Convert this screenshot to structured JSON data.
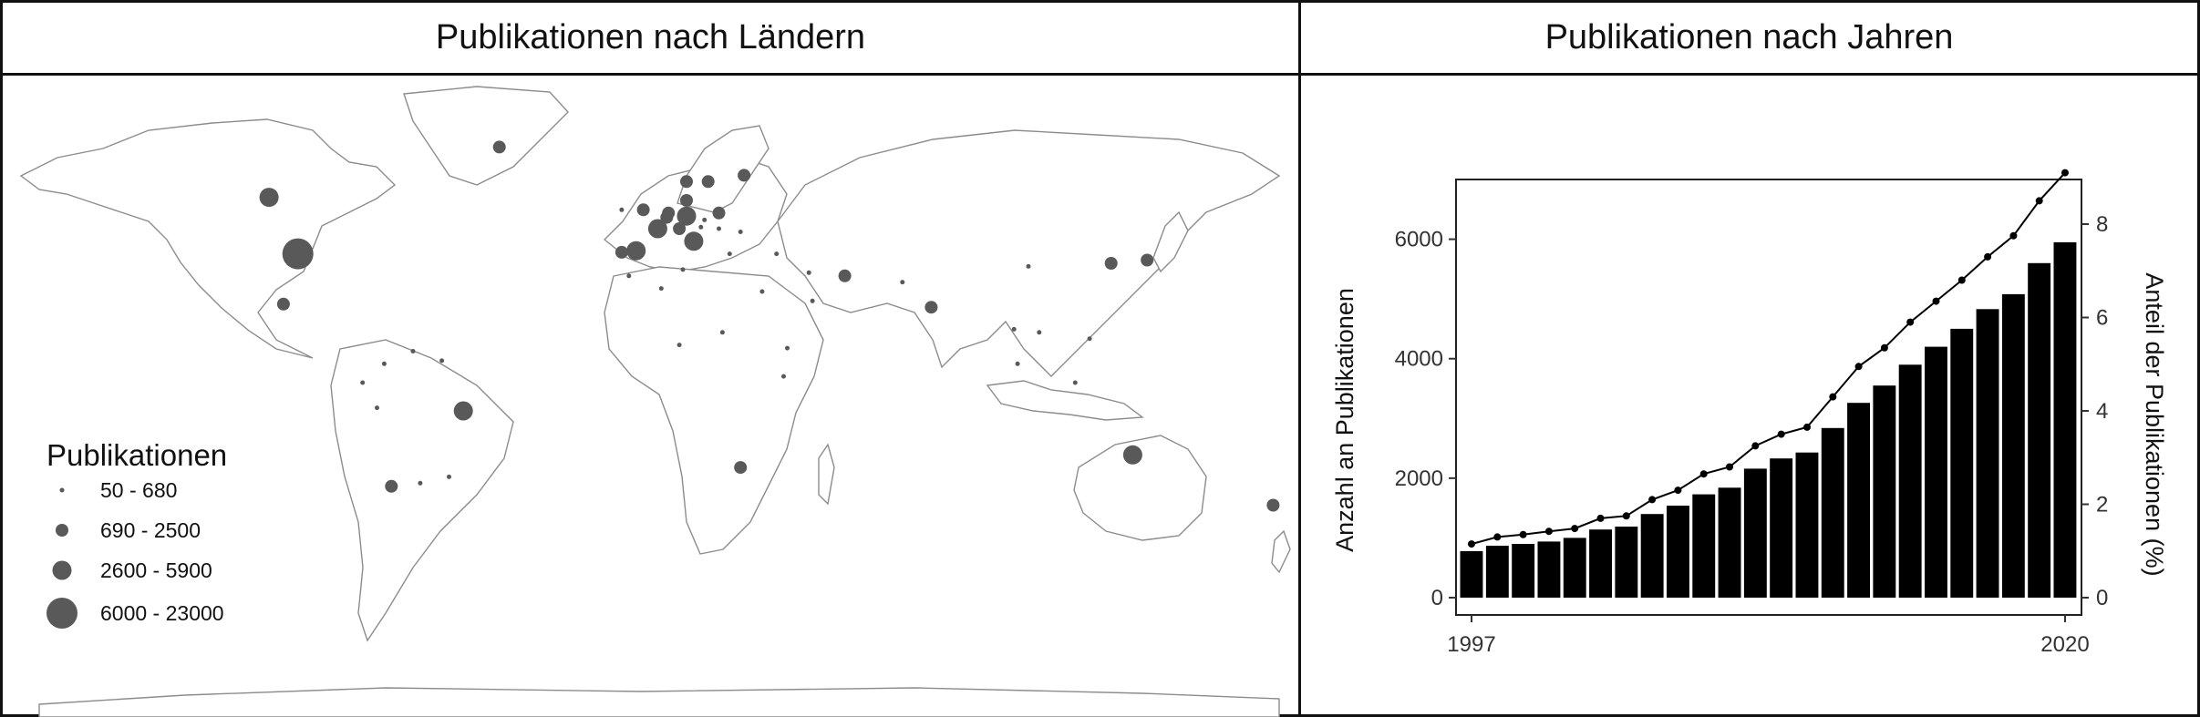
{
  "left_panel": {
    "title": "Publikationen nach Ländern",
    "legend": {
      "title": "Publikationen",
      "items": [
        {
          "label": "50 - 680",
          "size": 1
        },
        {
          "label": "690 - 2500",
          "size": 2
        },
        {
          "label": "2600 - 5900",
          "size": 3
        },
        {
          "label": "6000 - 23000",
          "size": 4
        }
      ]
    }
  },
  "right_panel": {
    "title": "Publikationen nach Jahren"
  },
  "chart_data": [
    {
      "type": "bubble-map",
      "title": "Publikationen nach Ländern",
      "size_legend_title": "Publikationen",
      "size_classes": [
        "50 - 680",
        "690 - 2500",
        "2600 - 5900",
        "6000 - 23000"
      ],
      "points": [
        {
          "lon": -98,
          "lat": 39,
          "class": 4
        },
        {
          "lon": -106,
          "lat": 57,
          "class": 3
        },
        {
          "lon": -42,
          "lat": 73,
          "class": 2
        },
        {
          "lon": -102,
          "lat": 23,
          "class": 2
        },
        {
          "lon": -52,
          "lat": -11,
          "class": 3
        },
        {
          "lon": -72,
          "lat": -35,
          "class": 2
        },
        {
          "lon": -64,
          "lat": -34,
          "class": 1
        },
        {
          "lon": -56,
          "lat": -32,
          "class": 1
        },
        {
          "lon": -74,
          "lat": 4,
          "class": 1
        },
        {
          "lon": -66,
          "lat": 8,
          "class": 1
        },
        {
          "lon": -76,
          "lat": -10,
          "class": 1
        },
        {
          "lon": -80,
          "lat": -2,
          "class": 1
        },
        {
          "lon": -58,
          "lat": 5,
          "class": 1
        },
        {
          "lon": -4,
          "lat": 40,
          "class": 3
        },
        {
          "lon": -8,
          "lat": 39.5,
          "class": 2
        },
        {
          "lon": 2,
          "lat": 47,
          "class": 3
        },
        {
          "lon": -2,
          "lat": 53,
          "class": 2
        },
        {
          "lon": -8,
          "lat": 53,
          "class": 1
        },
        {
          "lon": 10,
          "lat": 51,
          "class": 3
        },
        {
          "lon": 12,
          "lat": 43,
          "class": 3
        },
        {
          "lon": 5,
          "lat": 52,
          "class": 2
        },
        {
          "lon": 4.5,
          "lat": 50.6,
          "class": 2
        },
        {
          "lon": 8,
          "lat": 47,
          "class": 2
        },
        {
          "lon": 14,
          "lat": 47.5,
          "class": 1
        },
        {
          "lon": 10,
          "lat": 56,
          "class": 2
        },
        {
          "lon": 10,
          "lat": 62,
          "class": 2
        },
        {
          "lon": 16,
          "lat": 62,
          "class": 2
        },
        {
          "lon": 26,
          "lat": 64,
          "class": 2
        },
        {
          "lon": 19,
          "lat": 52,
          "class": 2
        },
        {
          "lon": 15,
          "lat": 49.8,
          "class": 1
        },
        {
          "lon": 22,
          "lat": 39,
          "class": 1
        },
        {
          "lon": 25,
          "lat": 46,
          "class": 1
        },
        {
          "lon": 19,
          "lat": 47,
          "class": 1
        },
        {
          "lon": 35,
          "lat": 39,
          "class": 1
        },
        {
          "lon": 31,
          "lat": 27,
          "class": 1
        },
        {
          "lon": 54,
          "lat": 32,
          "class": 2
        },
        {
          "lon": 45,
          "lat": 24,
          "class": 1
        },
        {
          "lon": 3,
          "lat": 28,
          "class": 1
        },
        {
          "lon": 9,
          "lat": 34,
          "class": 1
        },
        {
          "lon": -6,
          "lat": 32,
          "class": 1
        },
        {
          "lon": 8,
          "lat": 10,
          "class": 1
        },
        {
          "lon": 38,
          "lat": 9,
          "class": 1
        },
        {
          "lon": 37,
          "lat": 0,
          "class": 1
        },
        {
          "lon": 25,
          "lat": -29,
          "class": 2
        },
        {
          "lon": 20,
          "lat": 14,
          "class": 1
        },
        {
          "lon": 78,
          "lat": 22,
          "class": 2
        },
        {
          "lon": 70,
          "lat": 30,
          "class": 1
        },
        {
          "lon": 134,
          "lat": -25,
          "class": 3
        },
        {
          "lon": 173,
          "lat": -41,
          "class": 2
        },
        {
          "lon": 128,
          "lat": 36,
          "class": 2
        },
        {
          "lon": 138,
          "lat": 37,
          "class": 2
        },
        {
          "lon": 105,
          "lat": 35,
          "class": 1
        },
        {
          "lon": 101,
          "lat": 15,
          "class": 1
        },
        {
          "lon": 108,
          "lat": 14,
          "class": 1
        },
        {
          "lon": 102,
          "lat": 4,
          "class": 1
        },
        {
          "lon": 118,
          "lat": -2,
          "class": 1
        },
        {
          "lon": 122,
          "lat": 12,
          "class": 1
        },
        {
          "lon": 44,
          "lat": 33,
          "class": 1
        }
      ]
    },
    {
      "type": "bar+line",
      "title": "Publikationen nach Jahren",
      "x": [
        1997,
        1998,
        1999,
        2000,
        2001,
        2002,
        2003,
        2004,
        2005,
        2006,
        2007,
        2008,
        2009,
        2010,
        2011,
        2012,
        2013,
        2014,
        2015,
        2016,
        2017,
        2018,
        2019,
        2020
      ],
      "x_tick_labels": [
        "1997",
        "2020"
      ],
      "ylabel": "Anzahl an Publikationen",
      "ylim": [
        0,
        7000
      ],
      "y_ticks": [
        0,
        2000,
        4000,
        6000
      ],
      "y2label": "Anteil der Publikationen (%)",
      "y2lim": [
        0,
        9.6
      ],
      "y2_ticks": [
        0,
        2,
        4,
        6,
        8
      ],
      "bars": [
        780,
        870,
        900,
        940,
        1000,
        1140,
        1190,
        1400,
        1540,
        1730,
        1840,
        2160,
        2330,
        2430,
        2840,
        3260,
        3550,
        3900,
        4200,
        4500,
        4830,
        5080,
        5600,
        5950
      ],
      "line_percent": [
        1.15,
        1.3,
        1.35,
        1.42,
        1.48,
        1.7,
        1.75,
        2.1,
        2.3,
        2.65,
        2.8,
        3.25,
        3.5,
        3.65,
        4.3,
        4.95,
        5.35,
        5.9,
        6.35,
        6.8,
        7.3,
        7.75,
        8.5,
        9.1
      ],
      "grid": false
    }
  ]
}
